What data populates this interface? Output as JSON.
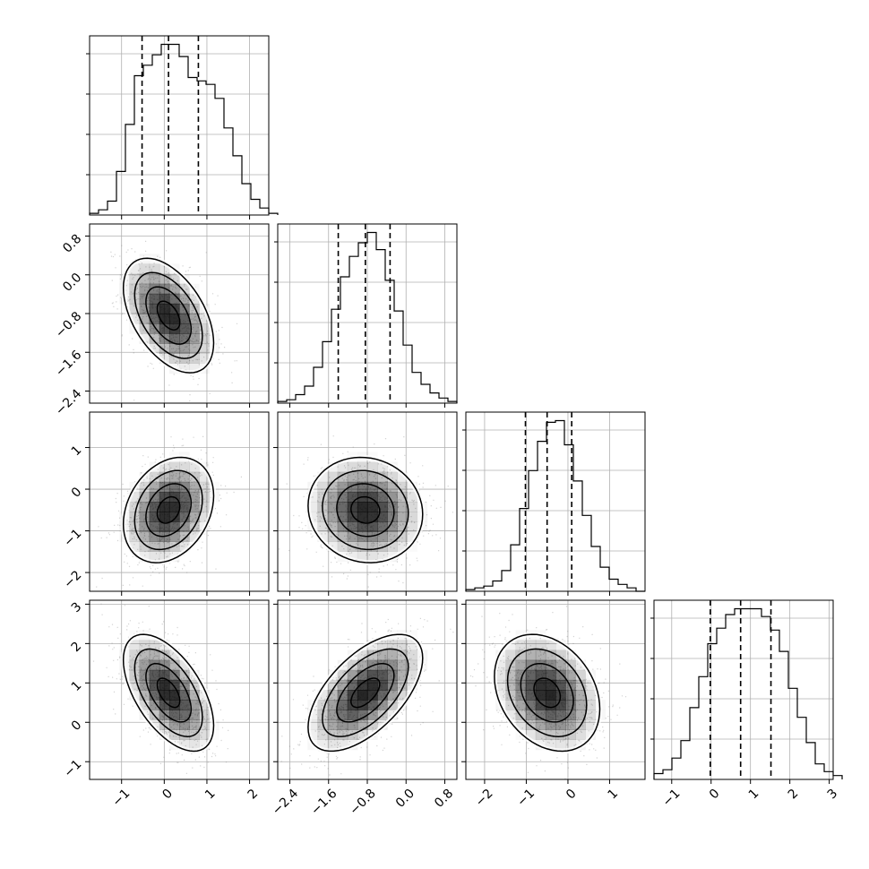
{
  "chart_data": {
    "type": "corner",
    "title": "",
    "parameters": [
      {
        "index": 0,
        "range": [
          -1.75,
          2.45
        ],
        "ticks": [
          -1,
          0,
          1,
          2
        ],
        "quantiles": [
          -0.52,
          0.1,
          0.8
        ],
        "hist_edges_start": -1.75,
        "hist_bin_width": 0.21,
        "hist_counts": [
          1,
          3,
          8,
          25,
          52,
          80,
          86,
          92,
          98,
          98,
          91,
          79,
          77,
          75,
          67,
          50,
          34,
          18,
          9,
          4,
          1
        ]
      },
      {
        "index": 1,
        "range": [
          -2.65,
          1.05
        ],
        "ticks": [
          -2.4,
          -1.6,
          -0.8,
          0.0,
          0.8
        ],
        "tick_labels": [
          "−2.4",
          "−1.6",
          "−0.8",
          "0.0",
          "0.8"
        ],
        "quantiles": [
          -1.4,
          -0.84,
          -0.33
        ],
        "hist_edges_start": -2.65,
        "hist_bin_width": 0.185,
        "hist_counts": [
          1,
          2,
          5,
          10,
          21,
          36,
          55,
          74,
          86,
          94,
          100,
          90,
          72,
          54,
          34,
          18,
          11,
          6,
          3,
          1
        ]
      },
      {
        "index": 2,
        "range": [
          -2.45,
          1.85
        ],
        "ticks": [
          -2,
          -1,
          0,
          1
        ],
        "quantiles": [
          -1.02,
          -0.5,
          0.09
        ],
        "hist_edges_start": -2.45,
        "hist_bin_width": 0.215,
        "hist_counts": [
          1,
          2,
          3,
          6,
          12,
          27,
          48,
          70,
          87,
          98,
          99,
          85,
          64,
          44,
          26,
          14,
          7,
          4,
          2,
          0
        ]
      },
      {
        "index": 3,
        "range": [
          -1.45,
          3.1
        ],
        "ticks": [
          -1,
          0,
          1,
          2,
          3
        ],
        "quantiles": [
          -0.02,
          0.75,
          1.52
        ],
        "hist_edges_start": -1.45,
        "hist_bin_width": 0.2275,
        "hist_counts": [
          3,
          5,
          11,
          20,
          37,
          53,
          70,
          78,
          85,
          88,
          88,
          88,
          84,
          77,
          66,
          47,
          32,
          19,
          8,
          4,
          2
        ]
      }
    ],
    "pairs": [
      {
        "x": 0,
        "y": 1,
        "cov": [
          [
            0.28,
            -0.15
          ],
          [
            -0.15,
            0.35
          ]
        ],
        "mean": [
          0.1,
          -0.84
        ]
      },
      {
        "x": 0,
        "y": 2,
        "cov": [
          [
            0.28,
            0.09
          ],
          [
            0.09,
            0.4
          ]
        ],
        "mean": [
          0.1,
          -0.5
        ]
      },
      {
        "x": 1,
        "y": 2,
        "cov": [
          [
            0.35,
            -0.03
          ],
          [
            -0.03,
            0.4
          ]
        ],
        "mean": [
          -0.84,
          -0.5
        ]
      },
      {
        "x": 0,
        "y": 3,
        "cov": [
          [
            0.28,
            -0.22
          ],
          [
            -0.22,
            0.55
          ]
        ],
        "mean": [
          0.1,
          0.75
        ]
      },
      {
        "x": 1,
        "y": 3,
        "cov": [
          [
            0.35,
            0.26
          ],
          [
            0.26,
            0.55
          ]
        ],
        "mean": [
          -0.84,
          0.75
        ]
      },
      {
        "x": 2,
        "y": 3,
        "cov": [
          [
            0.4,
            -0.13
          ],
          [
            -0.13,
            0.55
          ]
        ],
        "mean": [
          -0.5,
          0.75
        ]
      }
    ],
    "contour_levels_sigma": [
      0.5,
      1.0,
      1.5,
      2.0
    ],
    "grid": true,
    "legend": "none",
    "colors": {
      "line": "#000000",
      "grid": "#b0b0b0",
      "points": "#808080",
      "density": "#000000"
    }
  }
}
